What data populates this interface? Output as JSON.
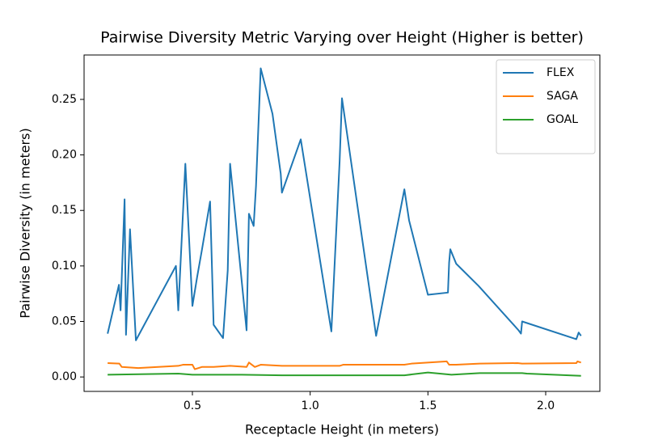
{
  "chart_data": {
    "type": "line",
    "title": "Pairwise Diversity Metric Varying over Height (Higher is better)",
    "xlabel": "Receptacle Height (in meters)",
    "ylabel": "Pairwise Diversity (in meters)",
    "xlim": [
      0.04,
      2.23
    ],
    "ylim": [
      -0.013,
      0.29
    ],
    "xticks": [
      0.5,
      {
        "value": 1.0,
        "label": "1.0"
      },
      1.5,
      {
        "value": 2.0,
        "label": "2.0"
      }
    ],
    "yticks": [
      {
        "value": 0,
        "label": "0.00"
      },
      {
        "value": 0.05,
        "label": "0.05"
      },
      {
        "value": 0.1,
        "label": "0.10"
      },
      {
        "value": 0.15,
        "label": "0.15"
      },
      {
        "value": 0.2,
        "label": "0.20"
      },
      {
        "value": 0.25,
        "label": "0.25"
      }
    ],
    "legend": "upper right",
    "series": [
      {
        "name": "FLEX",
        "color": "#1f77b4",
        "x": [
          0.14,
          0.188,
          0.195,
          0.212,
          0.218,
          0.235,
          0.26,
          0.43,
          0.44,
          0.47,
          0.5,
          0.52,
          0.54,
          0.575,
          0.59,
          0.63,
          0.65,
          0.66,
          0.73,
          0.74,
          0.76,
          0.77,
          0.79,
          0.84,
          0.875,
          0.88,
          0.96,
          1.09,
          1.125,
          1.135,
          1.28,
          1.4,
          1.42,
          1.5,
          1.585,
          1.59,
          1.595,
          1.62,
          1.715,
          1.885,
          1.895,
          1.9,
          2.13,
          2.14,
          2.15
        ],
        "values": [
          0.039,
          0.083,
          0.06,
          0.16,
          0.038,
          0.133,
          0.033,
          0.1,
          0.06,
          0.192,
          0.064,
          0.09,
          0.114,
          0.158,
          0.047,
          0.035,
          0.096,
          0.192,
          0.042,
          0.147,
          0.136,
          0.172,
          0.278,
          0.237,
          0.183,
          0.166,
          0.214,
          0.041,
          0.194,
          0.251,
          0.037,
          0.169,
          0.141,
          0.074,
          0.076,
          0.103,
          0.115,
          0.102,
          0.082,
          0.042,
          0.039,
          0.05,
          0.034,
          0.04,
          0.037
        ]
      },
      {
        "name": "SAGA",
        "color": "#ff7f0e",
        "x": [
          0.14,
          0.19,
          0.2,
          0.27,
          0.44,
          0.46,
          0.5,
          0.51,
          0.54,
          0.59,
          0.66,
          0.73,
          0.74,
          0.765,
          0.79,
          0.88,
          1.125,
          1.14,
          1.4,
          1.43,
          1.58,
          1.59,
          1.62,
          1.72,
          1.88,
          1.9,
          2.13,
          2.135,
          2.15
        ],
        "values": [
          0.0125,
          0.012,
          0.009,
          0.008,
          0.01,
          0.011,
          0.011,
          0.007,
          0.009,
          0.009,
          0.01,
          0.009,
          0.013,
          0.009,
          0.011,
          0.01,
          0.01,
          0.011,
          0.011,
          0.012,
          0.014,
          0.011,
          0.011,
          0.012,
          0.0125,
          0.012,
          0.0125,
          0.014,
          0.013
        ]
      },
      {
        "name": "GOAL",
        "color": "#2ca02c",
        "x": [
          0.14,
          0.44,
          0.5,
          0.71,
          0.88,
          1.4,
          1.5,
          1.6,
          1.72,
          1.9,
          1.92,
          2.15
        ],
        "values": [
          0.002,
          0.003,
          0.002,
          0.002,
          0.0015,
          0.0015,
          0.004,
          0.002,
          0.0035,
          0.0035,
          0.003,
          0.001
        ]
      }
    ]
  }
}
